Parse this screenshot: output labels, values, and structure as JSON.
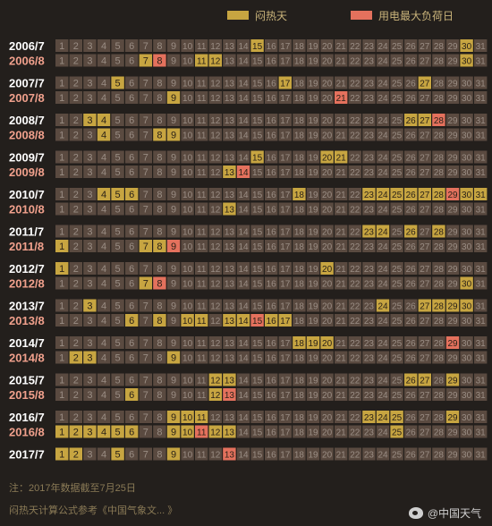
{
  "legend": {
    "hot": {
      "label": "闷热天",
      "color": "#c7a541"
    },
    "peak": {
      "label": "用电最大负荷日",
      "color": "#e4715d"
    }
  },
  "colors": {
    "cell_default": "#5a4a40",
    "cell_text": "#9a8d84",
    "hot_text": "#2b2218",
    "label_odd": "#ffffff",
    "label_even": "#f0a08c"
  },
  "chart_data": {
    "type": "table",
    "days": [
      1,
      2,
      3,
      4,
      5,
      6,
      7,
      8,
      9,
      10,
      11,
      12,
      13,
      14,
      15,
      16,
      17,
      18,
      19,
      20,
      21,
      22,
      23,
      24,
      25,
      26,
      27,
      28,
      29,
      30,
      31
    ],
    "rows": [
      {
        "label": "2006/7",
        "hot": [
          15,
          30
        ],
        "peak": []
      },
      {
        "label": "2006/8",
        "hot": [
          7,
          11,
          12,
          30
        ],
        "peak": [
          8
        ]
      },
      {
        "label": "2007/7",
        "hot": [
          5,
          17,
          27
        ],
        "peak": []
      },
      {
        "label": "2007/8",
        "hot": [
          9
        ],
        "peak": [
          21
        ]
      },
      {
        "label": "2008/7",
        "hot": [
          3,
          4,
          26,
          27
        ],
        "peak": [
          28
        ]
      },
      {
        "label": "2008/8",
        "hot": [
          4,
          8,
          9
        ],
        "peak": []
      },
      {
        "label": "2009/7",
        "hot": [
          15,
          20,
          21
        ],
        "peak": []
      },
      {
        "label": "2009/8",
        "hot": [
          13
        ],
        "peak": [
          14
        ]
      },
      {
        "label": "2010/7",
        "hot": [
          4,
          5,
          6,
          18,
          23,
          24,
          25,
          26,
          27,
          28,
          30,
          31
        ],
        "peak": [
          29
        ]
      },
      {
        "label": "2010/8",
        "hot": [
          13
        ],
        "peak": []
      },
      {
        "label": "2011/7",
        "hot": [
          23,
          24,
          26,
          28
        ],
        "peak": []
      },
      {
        "label": "2011/8",
        "hot": [
          1,
          7,
          8
        ],
        "peak": [
          9
        ]
      },
      {
        "label": "2012/7",
        "hot": [
          1,
          20
        ],
        "peak": []
      },
      {
        "label": "2012/8",
        "hot": [
          7,
          30
        ],
        "peak": [
          8
        ]
      },
      {
        "label": "2013/7",
        "hot": [
          3,
          24,
          27,
          28,
          29,
          30
        ],
        "peak": []
      },
      {
        "label": "2013/8",
        "hot": [
          6,
          8,
          10,
          11,
          13,
          14,
          16,
          17
        ],
        "peak": [
          15
        ]
      },
      {
        "label": "2014/7",
        "hot": [
          18,
          19,
          20
        ],
        "peak": [
          29
        ]
      },
      {
        "label": "2014/8",
        "hot": [
          2,
          3,
          9
        ],
        "peak": []
      },
      {
        "label": "2015/7",
        "hot": [
          12,
          13,
          26,
          27,
          29
        ],
        "peak": []
      },
      {
        "label": "2015/8",
        "hot": [
          6,
          12
        ],
        "peak": [
          13
        ]
      },
      {
        "label": "2016/7",
        "hot": [
          9,
          10,
          11,
          23,
          24,
          25,
          29
        ],
        "peak": []
      },
      {
        "label": "2016/8",
        "hot": [
          1,
          2,
          3,
          4,
          5,
          6,
          9,
          10,
          12,
          13,
          25
        ],
        "peak": [
          11
        ]
      },
      {
        "label": "2017/7",
        "hot": [
          1,
          2,
          5,
          9
        ],
        "peak": [
          13
        ]
      }
    ]
  },
  "footnotes": {
    "note1": "注：2017年数据截至7月25日",
    "note2": "闷热天计算公式参考《中国气象文... 》"
  },
  "credit": {
    "text": "@中国天气"
  }
}
